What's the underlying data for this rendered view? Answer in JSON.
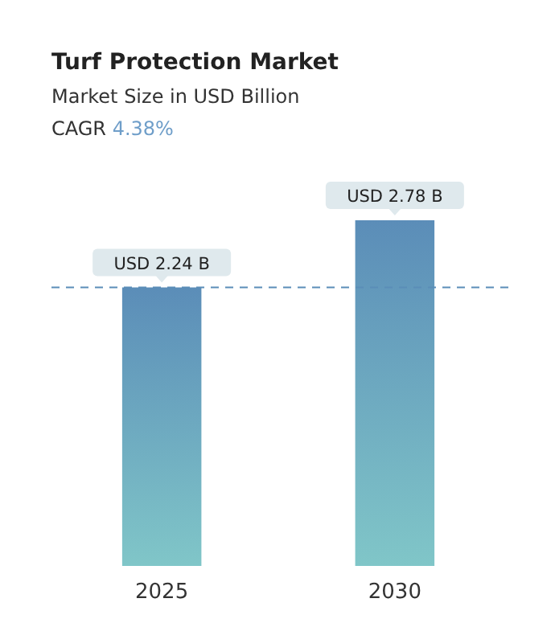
{
  "chart_data": {
    "type": "bar",
    "title": "Turf Protection Market",
    "subtitle": "Market Size in USD Billion",
    "annotations": [
      "CAGR 4.38%"
    ],
    "categories": [
      "2025",
      "2030"
    ],
    "values": [
      2.24,
      2.78
    ],
    "value_labels": [
      "USD 2.24 B",
      "USD 2.78 B"
    ],
    "color": "#5b8db8",
    "ref_lines": [
      {
        "axis": "y",
        "value": 2.24,
        "color": "#5b8db8",
        "line_style": "dashed"
      }
    ]
  }
}
